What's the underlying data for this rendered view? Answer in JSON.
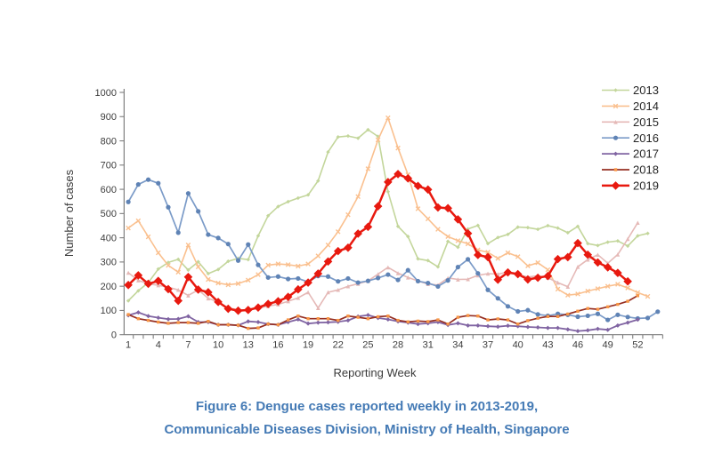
{
  "figure": {
    "caption_line1": "Figure 6: Dengue cases reported weekly in 2013-2019,",
    "caption_line2": "Communicable Diseases Division, Ministry of Health, Singapore",
    "caption_color": "#447ab5"
  },
  "chart_data": {
    "type": "line",
    "title": "Figure 6: Dengue cases reported weekly in 2013-2019, Communicable Diseases Division, Ministry of Health, Singapore",
    "xlabel": "Reporting Week",
    "ylabel": "Number of cases",
    "ylim": [
      0,
      1000
    ],
    "y_tick_step": 100,
    "y_tick_labels": [
      "0",
      "100",
      "200",
      "300",
      "400",
      "500",
      "600",
      "700",
      "800",
      "900",
      "1000"
    ],
    "x_tick_labels": [
      "1",
      "4",
      "7",
      "10",
      "13",
      "16",
      "19",
      "22",
      "25",
      "28",
      "31",
      "34",
      "37",
      "40",
      "43",
      "46",
      "49",
      "52"
    ],
    "x_tick_weeks": [
      1,
      4,
      7,
      10,
      13,
      16,
      19,
      22,
      25,
      28,
      31,
      34,
      37,
      40,
      43,
      46,
      49,
      52
    ],
    "x_slots": 54,
    "grid": false,
    "legend_position": "upper right",
    "series": [
      {
        "name": "2013",
        "color": "#c3d69b",
        "marker": "diamond",
        "marker_size": 4.4,
        "line_width": 1.6,
        "values": [
          140,
          181,
          215,
          271,
          298,
          311,
          267,
          301,
          252,
          269,
          303,
          315,
          310,
          408,
          491,
          529,
          549,
          564,
          577,
          635,
          754,
          816,
          820,
          811,
          846,
          818,
          590,
          447,
          405,
          313,
          306,
          280,
          385,
          361,
          436,
          451,
          376,
          401,
          414,
          444,
          442,
          435,
          450,
          440,
          421,
          447,
          376,
          368,
          382,
          387,
          366,
          408,
          418
        ]
      },
      {
        "name": "2014",
        "color": "#fac08f",
        "marker": "x",
        "marker_size": 4.6,
        "line_width": 1.6,
        "values": [
          440,
          470,
          404,
          338,
          286,
          258,
          370,
          280,
          228,
          213,
          206,
          211,
          225,
          248,
          287,
          292,
          289,
          283,
          292,
          325,
          370,
          425,
          495,
          570,
          685,
          804,
          895,
          770,
          660,
          520,
          478,
          435,
          405,
          388,
          375,
          350,
          340,
          315,
          338,
          322,
          284,
          297,
          268,
          188,
          163,
          168,
          180,
          190,
          200,
          208,
          193,
          174,
          158
        ]
      },
      {
        "name": "2015",
        "color": "#e5b9b7",
        "marker": "triangle",
        "marker_size": 4.6,
        "line_width": 1.6,
        "values": [
          256,
          224,
          210,
          204,
          196,
          185,
          162,
          185,
          150,
          135,
          110,
          103,
          100,
          110,
          118,
          125,
          138,
          152,
          175,
          110,
          175,
          185,
          200,
          210,
          222,
          250,
          278,
          254,
          236,
          222,
          209,
          205,
          234,
          228,
          229,
          245,
          252,
          250,
          258,
          248,
          238,
          243,
          235,
          215,
          198,
          280,
          310,
          330,
          295,
          331,
          395,
          462
        ]
      },
      {
        "name": "2016",
        "color": "#7b9bc8",
        "marker": "circle",
        "marker_size": 5.2,
        "marker_color": "#5f83b5",
        "line_width": 1.7,
        "values": [
          548,
          620,
          640,
          625,
          526,
          421,
          583,
          509,
          413,
          399,
          374,
          306,
          372,
          288,
          236,
          240,
          230,
          232,
          218,
          242,
          240,
          220,
          232,
          215,
          222,
          234,
          248,
          226,
          266,
          221,
          213,
          199,
          224,
          279,
          311,
          253,
          185,
          150,
          117,
          96,
          101,
          84,
          78,
          86,
          82,
          74,
          78,
          86,
          61,
          82,
          73,
          67,
          69,
          95
        ]
      },
      {
        "name": "2017",
        "color": "#8064a2",
        "marker": "diamond",
        "marker_size": 5,
        "line_width": 1.8,
        "values": [
          80,
          92,
          77,
          70,
          64,
          65,
          76,
          52,
          52,
          41,
          41,
          39,
          55,
          52,
          44,
          41,
          52,
          63,
          46,
          50,
          51,
          53,
          59,
          75,
          81,
          69,
          63,
          55,
          50,
          44,
          47,
          52,
          40,
          47,
          38,
          38,
          35,
          33,
          37,
          35,
          32,
          30,
          28,
          28,
          22,
          15,
          18,
          24,
          20,
          38,
          50,
          62
        ]
      },
      {
        "name": "2018",
        "color": "#962f23",
        "marker": "square",
        "marker_size": 3.4,
        "marker_color": "#f79646",
        "line_width": 1.7,
        "values": [
          83,
          66,
          59,
          52,
          47,
          50,
          50,
          47,
          55,
          41,
          41,
          39,
          26,
          28,
          44,
          41,
          61,
          77,
          66,
          66,
          66,
          59,
          77,
          72,
          66,
          74,
          77,
          59,
          53,
          56,
          54,
          61,
          44,
          72,
          79,
          77,
          61,
          65,
          61,
          44,
          58,
          68,
          75,
          75,
          85,
          97,
          108,
          105,
          115,
          125,
          138,
          161
        ]
      },
      {
        "name": "2019",
        "color": "#e8190f",
        "marker": "diamond",
        "marker_size": 9.6,
        "line_width": 2.5,
        "values": [
          205,
          245,
          210,
          222,
          188,
          140,
          238,
          186,
          175,
          135,
          107,
          99,
          102,
          112,
          127,
          138,
          156,
          187,
          215,
          252,
          302,
          345,
          359,
          417,
          445,
          530,
          630,
          663,
          645,
          614,
          599,
          525,
          522,
          476,
          418,
          329,
          320,
          227,
          257,
          250,
          228,
          235,
          242,
          312,
          320,
          378,
          330,
          298,
          278,
          255,
          220
        ]
      }
    ]
  }
}
